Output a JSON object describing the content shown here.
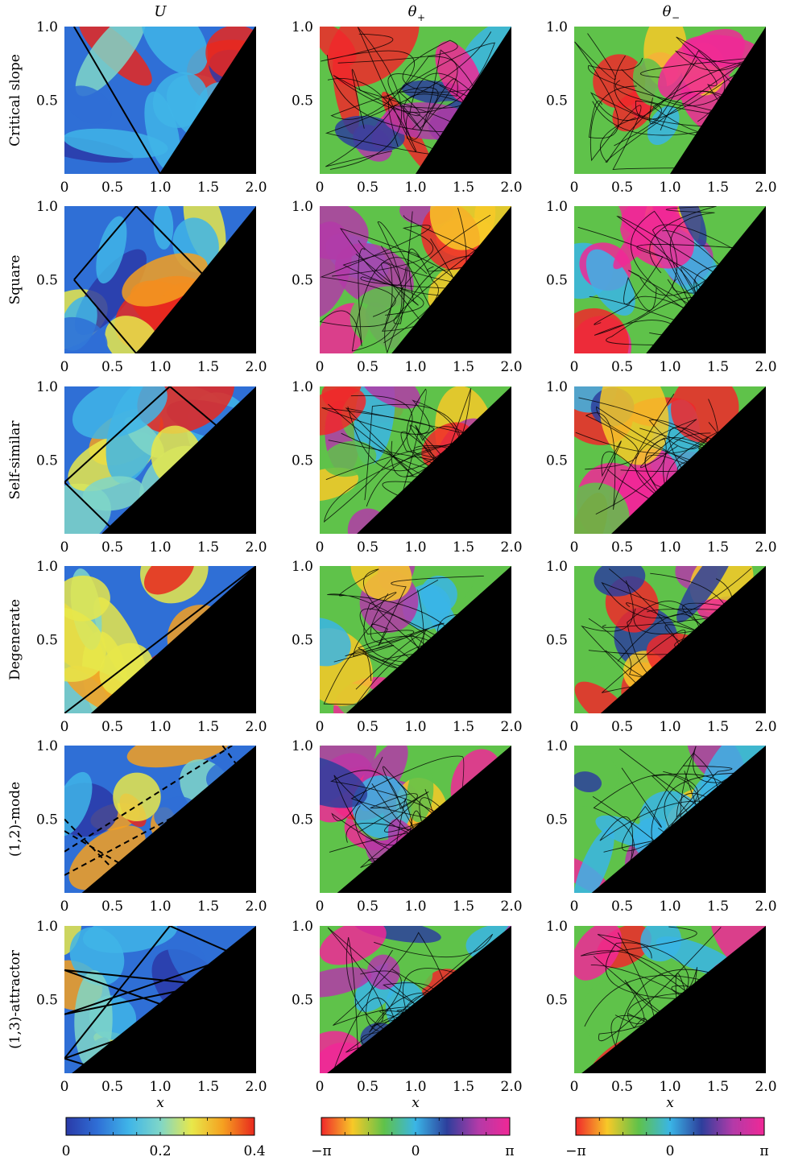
{
  "chart_data": {
    "type": "heatmap",
    "columns": [
      {
        "id": "U",
        "title": "U",
        "title_style": "italic",
        "colorbar": "jet",
        "colorbar_ticks": [
          "0",
          "0.2",
          "0.4"
        ],
        "range": [
          0,
          0.4
        ]
      },
      {
        "id": "theta_plus",
        "title": "θ",
        "title_sub": "+",
        "colorbar": "phase",
        "colorbar_ticks": [
          "−π",
          "0",
          "π"
        ],
        "range": [
          "−π",
          "π"
        ]
      },
      {
        "id": "theta_minus",
        "title": "θ",
        "title_sub": "−",
        "colorbar": "phase",
        "colorbar_ticks": [
          "−π",
          "0",
          "π"
        ],
        "range": [
          "−π",
          "π"
        ]
      }
    ],
    "rows": [
      {
        "label": "Critical slope",
        "slope": 1.0,
        "overlay": {
          "style": "solid",
          "path": [
            [
              0.1,
              1.0
            ],
            [
              1.0,
              0.0
            ],
            [
              2.0,
              1.0
            ]
          ]
        }
      },
      {
        "label": "Square",
        "slope": 0.8,
        "overlay": {
          "style": "solid",
          "path": [
            [
              0.1,
              0.5
            ],
            [
              0.75,
              1.0
            ],
            [
              1.5,
              0.5
            ],
            [
              0.75,
              0.0
            ],
            [
              0.1,
              0.5
            ]
          ]
        }
      },
      {
        "label": "Self-similar",
        "slope": 0.62,
        "overlay": {
          "style": "solid",
          "path": [
            [
              0.0,
              0.35
            ],
            [
              1.1,
              1.0
            ],
            [
              1.65,
              0.7
            ],
            [
              0.55,
              0.0
            ],
            [
              0.0,
              0.35
            ]
          ]
        }
      },
      {
        "label": "Degenerate",
        "slope": 0.58,
        "overlay": {
          "style": "solid",
          "path": [
            [
              0.0,
              0.0
            ],
            [
              2.0,
              1.0
            ]
          ]
        }
      },
      {
        "label": "(1,2)-mode",
        "slope": 0.55,
        "overlay": {
          "style": "dashed",
          "paths": [
            [
              [
                0.0,
                0.5
              ],
              [
                0.75,
                0.0
              ]
            ],
            [
              [
                0.0,
                0.28
              ],
              [
                1.75,
                1.0
              ]
            ],
            [
              [
                0.0,
                0.12
              ],
              [
                1.9,
                0.78
              ]
            ],
            [
              [
                0.0,
                0.42
              ],
              [
                1.1,
                0.0
              ]
            ],
            [
              [
                1.65,
                1.0
              ],
              [
                1.9,
                0.78
              ]
            ]
          ]
        }
      },
      {
        "label": "(1,3)-attractor",
        "slope": 0.52,
        "overlay": {
          "style": "solid",
          "path": [
            [
              0.0,
              0.1
            ],
            [
              1.1,
              1.0
            ],
            [
              1.8,
              0.8
            ],
            [
              0.0,
              0.4
            ],
            [
              1.5,
              0.6
            ],
            [
              0.0,
              0.7
            ],
            [
              1.3,
              0.4
            ],
            [
              0.0,
              0.1
            ],
            [
              0.5,
              0.0
            ],
            [
              1.2,
              0.05
            ]
          ]
        }
      }
    ],
    "x": {
      "label": "x",
      "range": [
        0,
        2.0
      ],
      "ticks": [
        "0",
        "0.5",
        "1.0",
        "1.5",
        "2.0"
      ]
    },
    "y": {
      "range": [
        0,
        1.0
      ],
      "ticks": [
        "0.5",
        "1.0"
      ]
    },
    "region_color": "#000000",
    "colormaps": {
      "jet": [
        "#2a3aa8",
        "#2f6fd6",
        "#3fb5e8",
        "#7fd6c8",
        "#e8e84a",
        "#f5a020",
        "#e8281e"
      ],
      "phase": [
        "#f0282a",
        "#f7c928",
        "#5fc24a",
        "#3ab5e6",
        "#2d3f9c",
        "#b33aa8",
        "#f02896"
      ]
    }
  }
}
